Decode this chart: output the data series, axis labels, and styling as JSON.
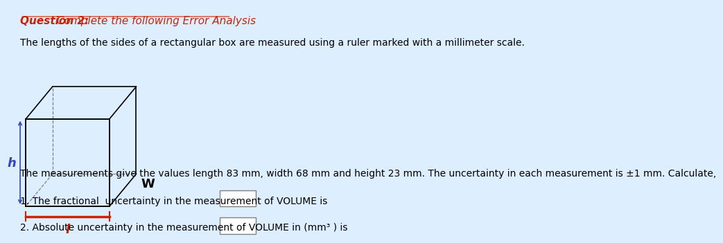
{
  "background_color": "#ddeeff",
  "title_q": "Question 2:",
  "title_rest": " Complete the following Error Analysis",
  "line1": "The lengths of the sides of a rectangular box are measured using a ruler marked with a millimeter scale.",
  "line2": "The measurements give the values length 83 mm, width 68 mm and height 23 mm. The uncertainty in each measurement is ±1 mm. Calculate,",
  "q1_text": "1. The fractional  uncertainty in the measurement of VOLUME is",
  "q2_text": "2. Absolute uncertainty in the measurement of VOLUME in (mm³ ) is",
  "h_label": "h",
  "w_label": "W",
  "l_label": "l",
  "title_color": "#cc2200",
  "h_color": "#3344cc",
  "l_color": "#cc2200",
  "w_color": "#000000",
  "text_color": "#000000",
  "font_size": 10,
  "title_font_size": 11
}
